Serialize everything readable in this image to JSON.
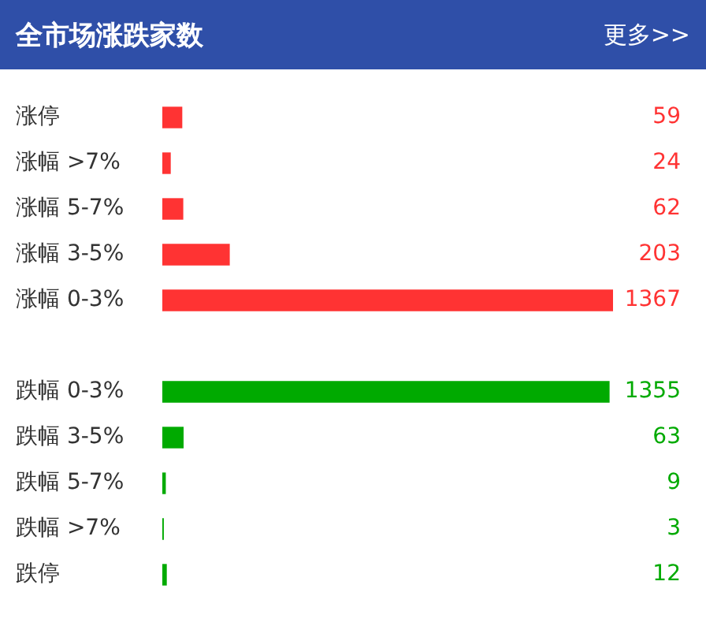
{
  "chart_data": {
    "type": "bar",
    "orientation": "horizontal",
    "title": "全市场涨跌家数",
    "annotations": [
      "更多>>"
    ],
    "categories": [
      "涨停",
      "涨幅 >7%",
      "涨幅 5-7%",
      "涨幅 3-5%",
      "涨幅 0-3%",
      null,
      "跌幅 0-3%",
      "跌幅 3-5%",
      "跌幅 5-7%",
      "跌幅 >7%",
      "跌停"
    ],
    "values": [
      59,
      24,
      62,
      203,
      1367,
      null,
      1355,
      63,
      9,
      3,
      12
    ],
    "colors": [
      "#ff3333",
      "#ff3333",
      "#ff3333",
      "#ff3333",
      "#ff3333",
      null,
      "#00aa00",
      "#00aa00",
      "#00aa00",
      "#00aa00",
      "#00aa00"
    ],
    "data_labels": true,
    "tick_labels": "y"
  }
}
